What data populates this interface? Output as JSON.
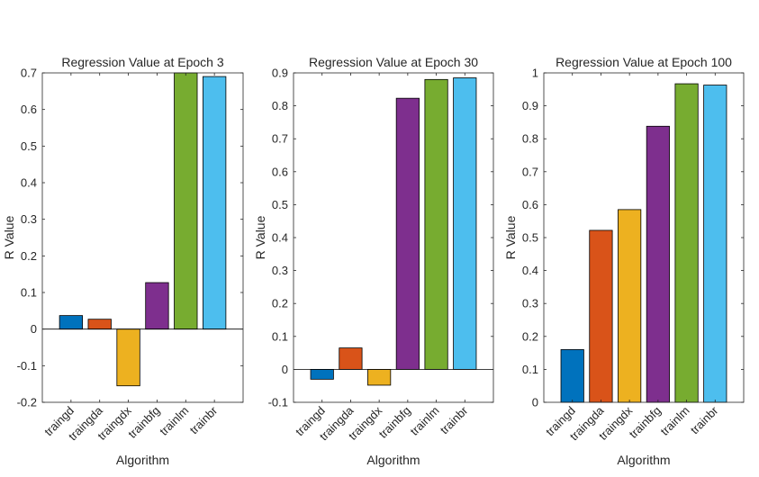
{
  "figure": {
    "background": "#ffffff",
    "axis_color": "#262626"
  },
  "chart_data": [
    {
      "type": "bar",
      "title": "Regression Value at Epoch 3",
      "xlabel": "Algorithm",
      "ylabel": "R Value",
      "ylim": [
        -0.2,
        0.7
      ],
      "yticks": [
        -0.2,
        -0.1,
        0,
        0.1,
        0.2,
        0.3,
        0.4,
        0.5,
        0.6,
        0.7
      ],
      "ytick_labels": [
        "-0.2",
        "-0.1",
        "0",
        "0.1",
        "0.2",
        "0.3",
        "0.4",
        "0.5",
        "0.6",
        "0.7"
      ],
      "categories": [
        "traingd",
        "traingda",
        "traingdx",
        "trainbfg",
        "trainlm",
        "trainbr"
      ],
      "values": [
        0.037,
        0.027,
        -0.155,
        0.127,
        0.7,
        0.69
      ],
      "colors": [
        "#0072BD",
        "#D95319",
        "#EDB120",
        "#7E2F8E",
        "#77AC30",
        "#4DBEEE"
      ],
      "grid": false
    },
    {
      "type": "bar",
      "title": "Regression Value at Epoch 30",
      "xlabel": "Algorithm",
      "ylabel": "R Value",
      "ylim": [
        -0.1,
        0.9
      ],
      "yticks": [
        -0.1,
        0,
        0.1,
        0.2,
        0.3,
        0.4,
        0.5,
        0.6,
        0.7,
        0.8,
        0.9
      ],
      "ytick_labels": [
        "-0.1",
        "0",
        "0.1",
        "0.2",
        "0.3",
        "0.4",
        "0.5",
        "0.6",
        "0.7",
        "0.8",
        "0.9"
      ],
      "categories": [
        "traingd",
        "traingda",
        "traingdx",
        "trainbfg",
        "trainlm",
        "trainbr"
      ],
      "values": [
        -0.03,
        0.065,
        -0.048,
        0.823,
        0.88,
        0.885
      ],
      "colors": [
        "#0072BD",
        "#D95319",
        "#EDB120",
        "#7E2F8E",
        "#77AC30",
        "#4DBEEE"
      ],
      "grid": false
    },
    {
      "type": "bar",
      "title": "Regression Value at Epoch 100",
      "xlabel": "Algorithm",
      "ylabel": "R Value",
      "ylim": [
        0,
        1
      ],
      "yticks": [
        0,
        0.1,
        0.2,
        0.3,
        0.4,
        0.5,
        0.6,
        0.7,
        0.8,
        0.9,
        1
      ],
      "ytick_labels": [
        "0",
        "0.1",
        "0.2",
        "0.3",
        "0.4",
        "0.5",
        "0.6",
        "0.7",
        "0.8",
        "0.9",
        "1"
      ],
      "categories": [
        "traingd",
        "traingda",
        "traingdx",
        "trainbfg",
        "trainlm",
        "trainbr"
      ],
      "values": [
        0.16,
        0.522,
        0.585,
        0.838,
        0.967,
        0.963
      ],
      "colors": [
        "#0072BD",
        "#D95319",
        "#EDB120",
        "#7E2F8E",
        "#77AC30",
        "#4DBEEE"
      ],
      "grid": false
    }
  ]
}
